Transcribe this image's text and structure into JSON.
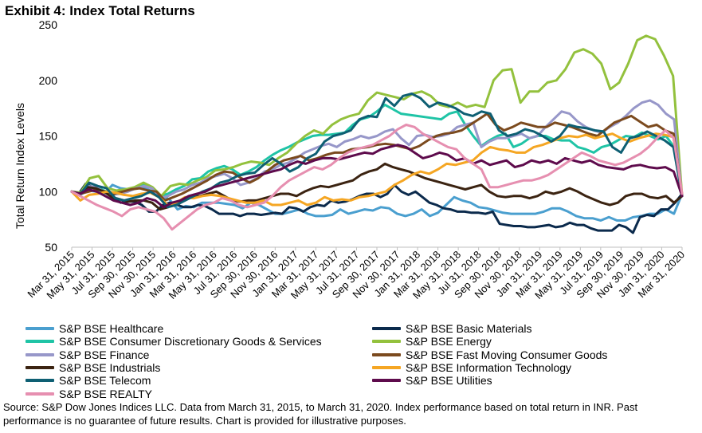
{
  "page": {
    "title": "Exhibit 4: Index Total Returns",
    "source": "Source: S&P Dow Jones Indices LLC. Data from March 31, 2015, to March 31, 2020. Index performance based on total return in INR. Past performance is no guarantee of future results. Chart is provided for illustrative purposes."
  },
  "chart_data": {
    "type": "line",
    "ylabel": "Total Return Index Levels",
    "ylim": [
      50,
      250
    ],
    "yticks": [
      50,
      100,
      150,
      200,
      250
    ],
    "xtick_labels": [
      "Mar 31, 2015",
      "May 31, 2015",
      "Jul 31, 2015",
      "Sep 30, 2015",
      "Nov 30, 2015",
      "Jan 31, 2016",
      "Mar 31, 2016",
      "May 31, 2016",
      "Jul 31, 2016",
      "Sep 30, 2016",
      "Nov 30, 2016",
      "Jan 31, 2017",
      "Mar 31, 2017",
      "May 31, 2017",
      "Jul 31, 2017",
      "Sep 30, 2017",
      "Nov 30, 2017",
      "Jan 31, 2018",
      "Mar 31, 2018",
      "May 31, 2018",
      "Jul 31, 2018",
      "Sep 30, 2018",
      "Nov 30, 2018",
      "Jan 31, 2019",
      "Mar 31, 2019",
      "May 31, 2019",
      "Jul 31, 2019",
      "Sep 30, 2019",
      "Nov 30, 2019",
      "Jan 31, 2020",
      "Mar 31, 2020"
    ],
    "grid": false,
    "legend_position": "bottom",
    "series": [
      {
        "name": "S&P BSE Healthcare",
        "color": "#4A9FCF",
        "values": [
          100,
          97,
          101,
          100,
          98,
          106,
          103,
          102,
          104,
          103,
          100,
          96,
          93,
          84,
          87,
          86,
          90,
          90,
          90,
          89,
          88,
          85,
          90,
          88,
          84,
          80,
          80,
          82,
          84,
          80,
          78,
          78,
          79,
          84,
          80,
          82,
          84,
          83,
          86,
          85,
          80,
          78,
          80,
          84,
          78,
          81,
          88,
          95,
          92,
          90,
          86,
          85,
          83,
          81,
          80,
          80,
          80,
          80,
          82,
          85,
          85,
          82,
          78,
          76,
          76,
          74,
          77,
          74,
          74,
          77,
          78,
          80,
          80,
          84,
          80,
          98
        ]
      },
      {
        "name": "S&P BSE Basic Materials",
        "color": "#0B2A4C",
        "values": [
          100,
          98,
          107,
          104,
          103,
          99,
          94,
          90,
          91,
          91,
          88,
          82,
          82,
          88,
          90,
          88,
          86,
          86,
          88,
          87,
          84,
          80,
          80,
          80,
          78,
          80,
          80,
          79,
          80,
          81,
          80,
          86,
          85,
          82,
          86,
          88,
          87,
          92,
          90,
          91,
          93,
          96,
          98,
          98,
          95,
          98,
          106,
          100,
          97,
          100,
          95,
          90,
          88,
          85,
          84,
          82,
          82,
          81,
          81,
          80,
          82,
          71,
          70,
          69,
          69,
          68,
          68,
          69,
          70,
          68,
          69,
          72,
          70,
          70,
          67,
          65,
          65,
          65,
          70,
          68,
          63,
          77,
          79,
          78,
          84,
          84,
          90,
          98
        ]
      },
      {
        "name": "S&P BSE Consumer Discretionary Goods & Services",
        "color": "#1FC4A6",
        "values": [
          100,
          98,
          103,
          104,
          101,
          98,
          101,
          102,
          104,
          106,
          103,
          96,
          98,
          102,
          105,
          111,
          112,
          118,
          121,
          123,
          120,
          115,
          118,
          122,
          128,
          133,
          137,
          140,
          144,
          147,
          150,
          151,
          151,
          152,
          153,
          160,
          165,
          167,
          172,
          178,
          174,
          170,
          169,
          168,
          167,
          166,
          165,
          170,
          172,
          160,
          150,
          141,
          146,
          150,
          152,
          140,
          143,
          148,
          150,
          150,
          147,
          146,
          146,
          140,
          138,
          135,
          140,
          142,
          146,
          150,
          149,
          153,
          150,
          147,
          150,
          140,
          96
        ]
      },
      {
        "name": "S&P BSE Energy",
        "color": "#93C13D",
        "values": [
          100,
          99,
          112,
          114,
          103,
          101,
          102,
          104,
          108,
          104,
          96,
          105,
          107,
          106,
          110,
          113,
          119,
          120,
          122,
          125,
          127,
          126,
          124,
          130,
          135,
          143,
          150,
          155,
          152,
          160,
          165,
          168,
          170,
          182,
          189,
          187,
          185,
          183,
          188,
          190,
          186,
          178,
          176,
          180,
          176,
          178,
          176,
          200,
          209,
          210,
          180,
          190,
          190,
          198,
          200,
          210,
          225,
          228,
          224,
          215,
          192,
          198,
          215,
          236,
          240,
          237,
          222,
          204,
          96
        ]
      },
      {
        "name": "S&P BSE Finance",
        "color": "#9797C9",
        "values": [
          100,
          97,
          105,
          104,
          100,
          97,
          98,
          100,
          103,
          105,
          103,
          94,
          96,
          100,
          102,
          106,
          108,
          112,
          114,
          116,
          112,
          106,
          108,
          112,
          118,
          120,
          124,
          126,
          130,
          135,
          138,
          141,
          143,
          140,
          145,
          147,
          150,
          148,
          150,
          154,
          156,
          148,
          142,
          150,
          151,
          149,
          150,
          152,
          158,
          160,
          162,
          140,
          145,
          148,
          148,
          150,
          152,
          148,
          150,
          158,
          165,
          172,
          170,
          163,
          158,
          155,
          153,
          158,
          162,
          168,
          175,
          180,
          182,
          178,
          170,
          165,
          96
        ]
      },
      {
        "name": "S&P BSE Fast Moving Consumer Goods",
        "color": "#7B4A1E",
        "values": [
          100,
          98,
          100,
          102,
          100,
          98,
          100,
          102,
          103,
          101,
          100,
          92,
          95,
          98,
          102,
          106,
          110,
          115,
          118,
          117,
          112,
          108,
          112,
          118,
          124,
          128,
          130,
          132,
          128,
          130,
          133,
          135,
          135,
          138,
          139,
          140,
          142,
          143,
          142,
          140,
          138,
          141,
          146,
          150,
          152,
          153,
          155,
          160,
          165,
          170,
          160,
          155,
          158,
          162,
          160,
          158,
          158,
          162,
          160,
          158,
          155,
          152,
          150,
          156,
          162,
          165,
          168,
          163,
          158,
          160,
          155,
          152,
          96
        ]
      },
      {
        "name": "S&P BSE Industrials",
        "color": "#3B2311",
        "values": [
          100,
          98,
          104,
          103,
          100,
          95,
          93,
          91,
          92,
          92,
          90,
          84,
          86,
          90,
          93,
          95,
          96,
          98,
          100,
          96,
          92,
          91,
          92,
          92,
          94,
          96,
          98,
          98,
          96,
          100,
          103,
          105,
          104,
          106,
          108,
          110,
          115,
          118,
          120,
          125,
          122,
          120,
          118,
          115,
          112,
          110,
          108,
          106,
          104,
          102,
          104,
          106,
          100,
          96,
          95,
          96,
          96,
          94,
          96,
          100,
          98,
          100,
          103,
          100,
          96,
          93,
          90,
          88,
          90,
          96,
          98,
          98,
          95,
          94,
          96,
          90,
          96
        ]
      },
      {
        "name": "S&P BSE Information Technology",
        "color": "#F5A623",
        "values": [
          100,
          92,
          97,
          98,
          100,
          99,
          97,
          96,
          98,
          99,
          95,
          88,
          90,
          95,
          94,
          96,
          97,
          96,
          94,
          92,
          90,
          90,
          92,
          88,
          88,
          90,
          92,
          88,
          90,
          95,
          92,
          93,
          92,
          95,
          96,
          98,
          100,
          106,
          110,
          115,
          118,
          116,
          120,
          125,
          124,
          126,
          128,
          135,
          140,
          138,
          137,
          135,
          135,
          140,
          142,
          145,
          148,
          150,
          149,
          151,
          148,
          150,
          152,
          148,
          145,
          148,
          150,
          152,
          151,
          149,
          98
        ]
      },
      {
        "name": "S&P BSE Telecom",
        "color": "#0E5F73",
        "values": [
          100,
          98,
          108,
          105,
          103,
          94,
          92,
          94,
          96,
          100,
          95,
          86,
          88,
          92,
          96,
          100,
          103,
          108,
          110,
          114,
          116,
          117,
          124,
          130,
          125,
          118,
          122,
          130,
          134,
          145,
          150,
          152,
          155,
          165,
          168,
          167,
          184,
          177,
          186,
          188,
          184,
          176,
          180,
          178,
          175,
          170,
          168,
          172,
          170,
          155,
          150,
          152,
          156,
          154,
          150,
          145,
          150,
          160,
          158,
          157,
          155,
          154,
          140,
          135,
          148,
          150,
          154,
          150,
          146,
          140,
          96
        ]
      },
      {
        "name": "S&P BSE Utilities",
        "color": "#5E0B4C",
        "values": [
          100,
          98,
          102,
          100,
          96,
          92,
          90,
          88,
          90,
          94,
          92,
          86,
          90,
          92,
          96,
          98,
          100,
          104,
          106,
          108,
          110,
          112,
          114,
          116,
          118,
          120,
          124,
          127,
          125,
          128,
          130,
          130,
          129,
          131,
          133,
          135,
          134,
          138,
          140,
          142,
          140,
          135,
          130,
          132,
          135,
          133,
          128,
          130,
          125,
          128,
          124,
          126,
          128,
          122,
          124,
          128,
          126,
          128,
          125,
          130,
          128,
          126,
          128,
          124,
          122,
          121,
          120,
          123,
          124,
          122,
          121,
          122,
          118,
          96
        ]
      },
      {
        "name": "S&P BSE REALTY",
        "color": "#E68FB0",
        "values": [
          100,
          96,
          92,
          88,
          85,
          82,
          78,
          84,
          86,
          84,
          82,
          76,
          66,
          72,
          78,
          84,
          88,
          90,
          94,
          92,
          88,
          86,
          88,
          90,
          96,
          104,
          110,
          114,
          118,
          122,
          120,
          124,
          130,
          135,
          138,
          140,
          142,
          146,
          150,
          156,
          160,
          158,
          152,
          148,
          144,
          140,
          138,
          130,
          125,
          120,
          104,
          104,
          106,
          108,
          110,
          110,
          112,
          115,
          120,
          125,
          130,
          135,
          132,
          128,
          126,
          124,
          126,
          130,
          134,
          140,
          148,
          155,
          148,
          98
        ]
      }
    ]
  }
}
